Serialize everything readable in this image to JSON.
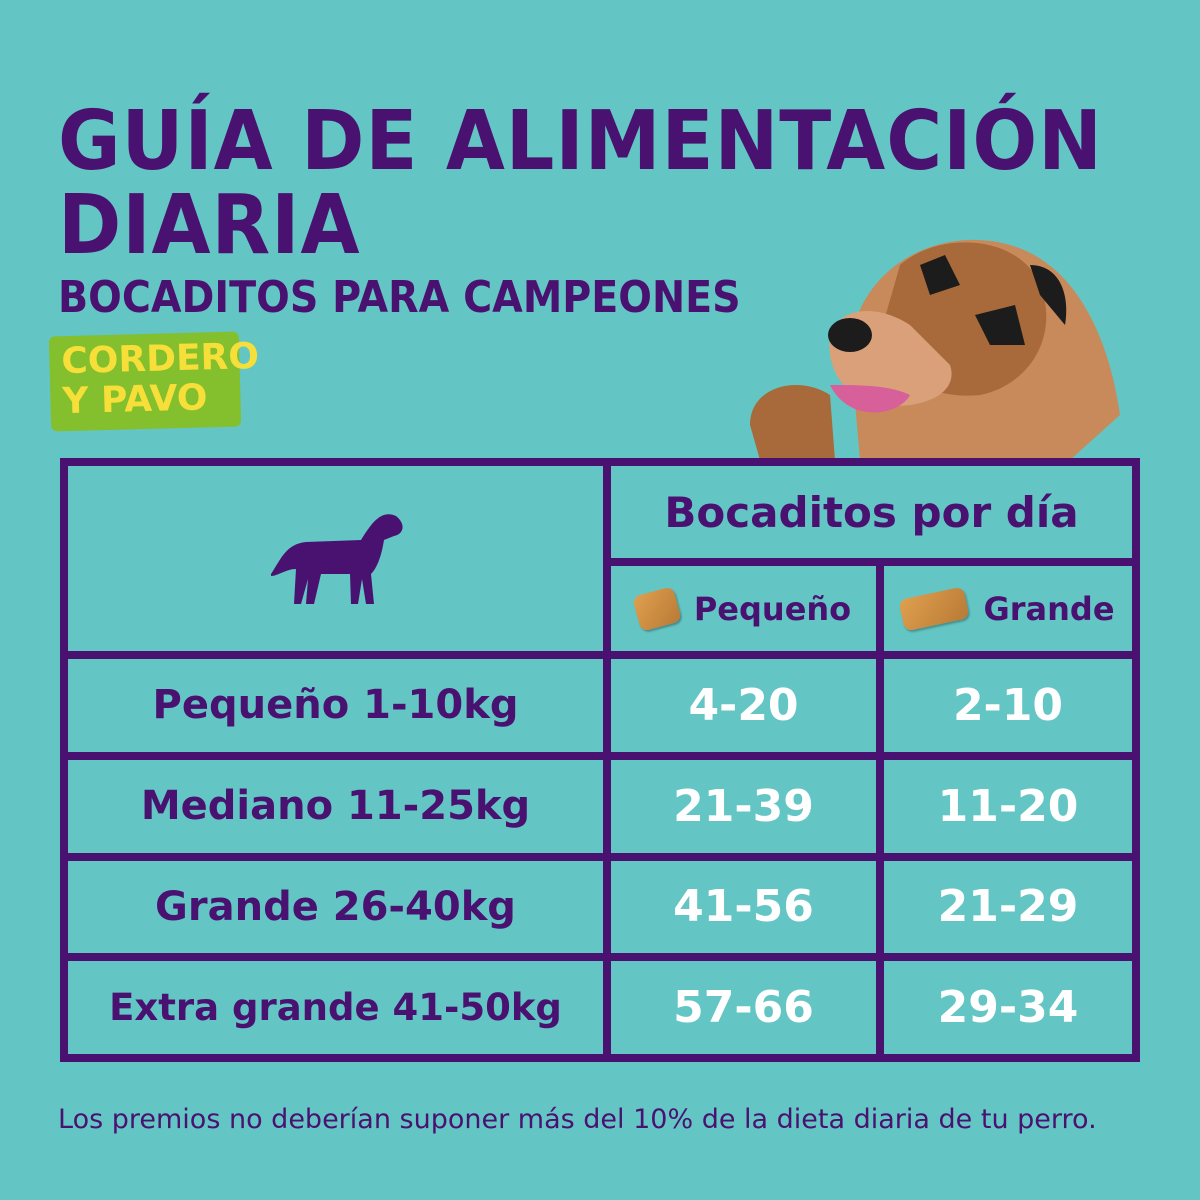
{
  "title": "GUÍA DE ALIMENTACIÓN DIARIA",
  "title_line1": "GUÍA DE ALIMENTACIÓN",
  "title_line2": "DIARIA",
  "subtitle": "BOCADITOS PARA CAMPEONES",
  "badge": {
    "line1": "CORDERO",
    "line2": "Y PAVO"
  },
  "colors": {
    "background": "#63c6c4",
    "purple": "#4a1270",
    "badge": "#84bf2e",
    "badge_text": "#f7df3a"
  },
  "table": {
    "header": "Bocaditos por día",
    "columns": [
      "Pequeño",
      "Grande"
    ],
    "rows": [
      {
        "label": "Pequeño 1-10kg",
        "small": "4-20",
        "large": "2-10"
      },
      {
        "label": "Mediano 11-25kg",
        "small": "21-39",
        "large": "11-20"
      },
      {
        "label": "Grande 26-40kg",
        "small": "41-56",
        "large": "21-29"
      },
      {
        "label": "Extra grande 41-50kg",
        "small": "57-66",
        "large": "29-34"
      }
    ]
  },
  "footnote": "Los premios no deberían suponer más del 10% de la dieta diaria de tu perro."
}
